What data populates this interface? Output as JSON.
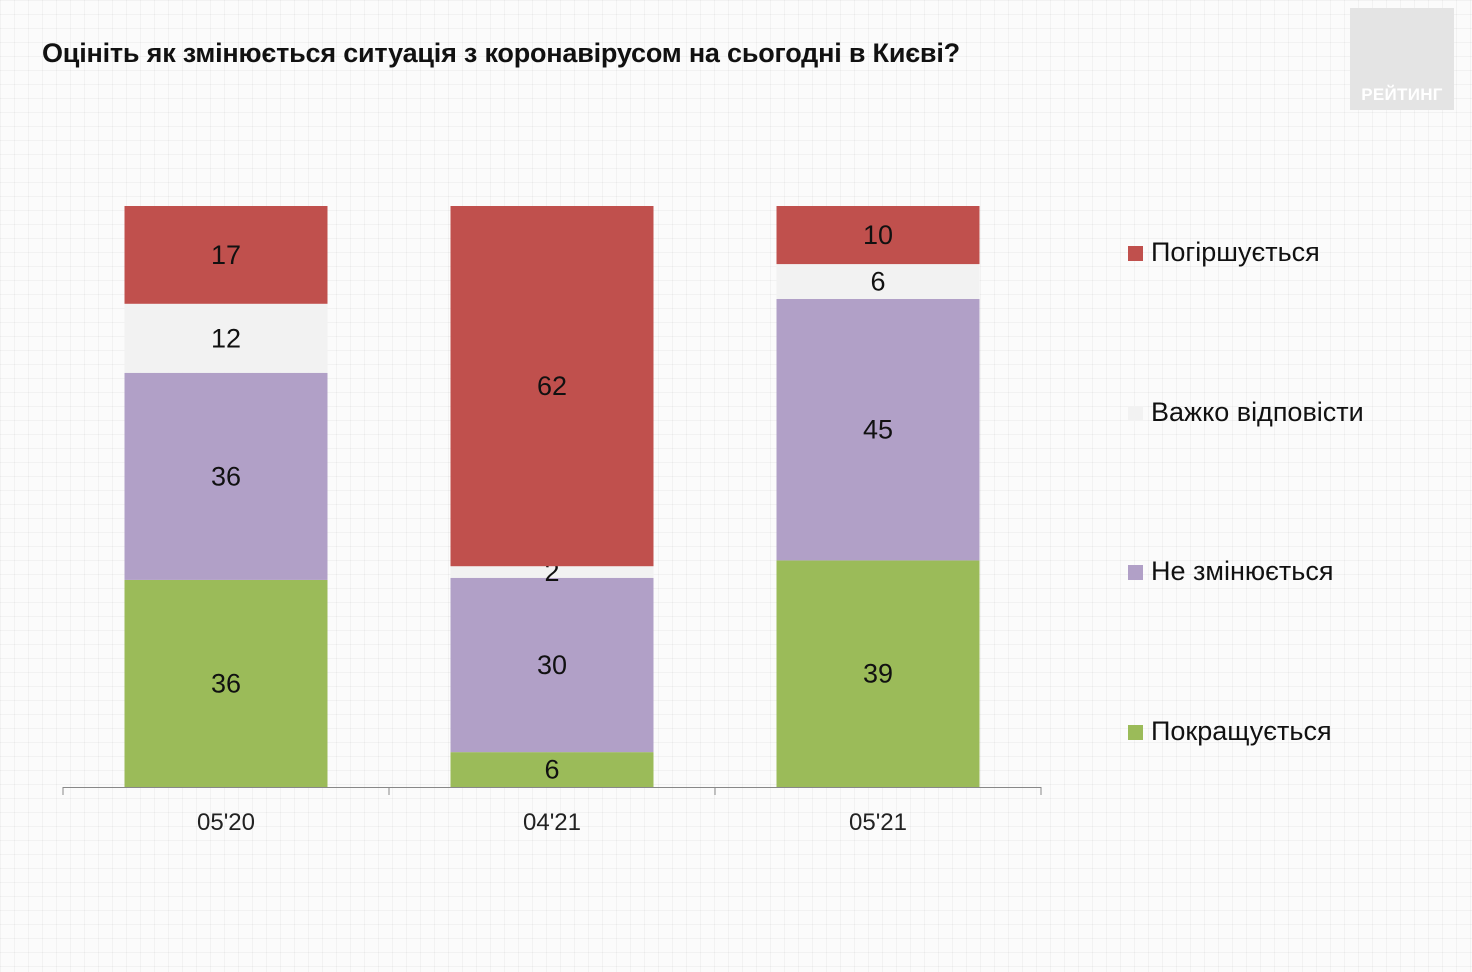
{
  "title": "Оцініть як змінюється ситуація з коронавірусом на сьогодні в Києві?",
  "logo_text": "РЕЙТИНГ",
  "chart_data": {
    "type": "bar",
    "stacked": true,
    "categories": [
      "05'20",
      "04'21",
      "05'21"
    ],
    "series": [
      {
        "name": "Покращується",
        "color": "#9bbb59",
        "values": [
          36,
          6,
          39
        ]
      },
      {
        "name": "Не змінюється",
        "color": "#b1a0c7",
        "values": [
          36,
          30,
          45
        ]
      },
      {
        "name": "Важко відповісти",
        "color": "#f2f2f2",
        "values": [
          12,
          2,
          6
        ]
      },
      {
        "name": "Погіршується",
        "color": "#c0504d",
        "values": [
          17,
          62,
          10
        ]
      }
    ],
    "legend_order": [
      "Погіршується",
      "Важко відповісти",
      "Не змінюється",
      "Покращується"
    ],
    "legend_position": "right",
    "ylim": [
      0,
      100
    ],
    "grid": false
  }
}
